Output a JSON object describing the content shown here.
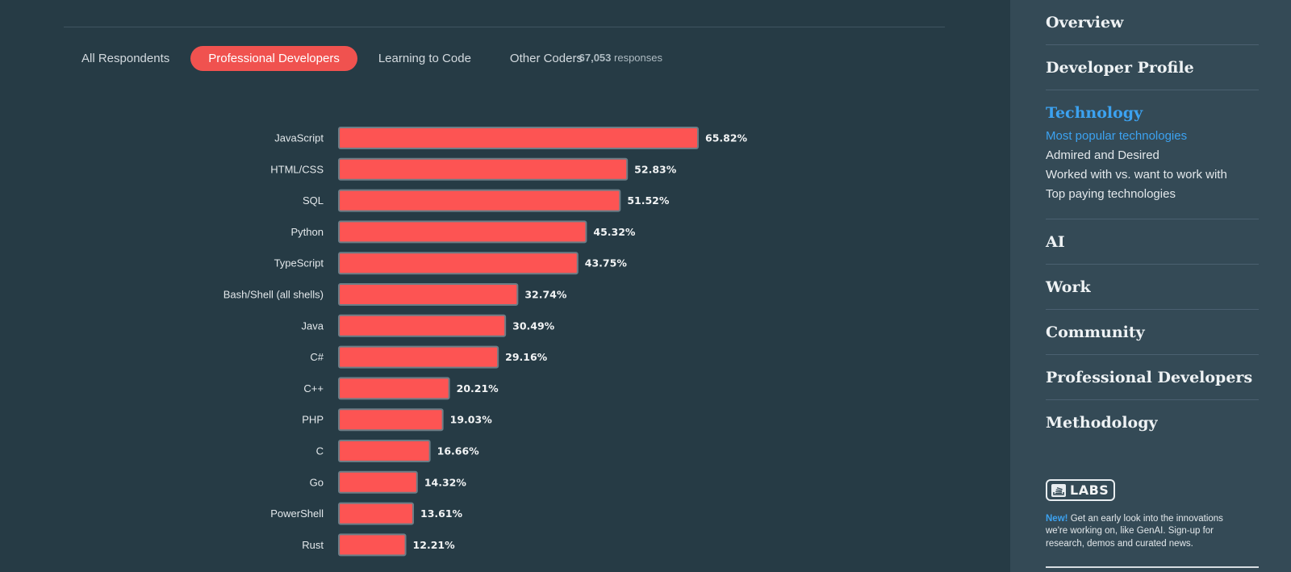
{
  "tabs": [
    {
      "label": "All Respondents",
      "active": false
    },
    {
      "label": "Professional Developers",
      "active": true
    },
    {
      "label": "Learning to Code",
      "active": false
    },
    {
      "label": "Other Coders",
      "active": false
    }
  ],
  "responses": {
    "count": "67,053",
    "label": "responses"
  },
  "colors": {
    "bar": "#fd5453",
    "accent": "#3ca2f0",
    "active_tab": "#f0524f"
  },
  "chart_data": {
    "type": "bar",
    "orientation": "horizontal",
    "categories": [
      "JavaScript",
      "HTML/CSS",
      "SQL",
      "Python",
      "TypeScript",
      "Bash/Shell (all shells)",
      "Java",
      "C#",
      "C++",
      "PHP",
      "C",
      "Go",
      "PowerShell",
      "Rust"
    ],
    "values": [
      65.82,
      52.83,
      51.52,
      45.32,
      43.75,
      32.74,
      30.49,
      29.16,
      20.21,
      19.03,
      16.66,
      14.32,
      13.61,
      12.21
    ],
    "value_labels": [
      "65.82%",
      "52.83%",
      "51.52%",
      "45.32%",
      "43.75%",
      "32.74%",
      "30.49%",
      "29.16%",
      "20.21%",
      "19.03%",
      "16.66%",
      "14.32%",
      "13.61%",
      "12.21%"
    ],
    "unit": "%",
    "grid": false,
    "legend": "none"
  },
  "sidebar": {
    "sections": [
      {
        "label": "Overview",
        "active": false
      },
      {
        "label": "Developer Profile",
        "active": false
      },
      {
        "label": "Technology",
        "active": true,
        "items": [
          {
            "label": "Most popular technologies",
            "active": true
          },
          {
            "label": "Admired and Desired",
            "active": false
          },
          {
            "label": "Worked with vs. want to work with",
            "active": false
          },
          {
            "label": "Top paying technologies",
            "active": false
          }
        ]
      },
      {
        "label": "AI",
        "active": false
      },
      {
        "label": "Work",
        "active": false
      },
      {
        "label": "Community",
        "active": false
      },
      {
        "label": "Professional Developers",
        "active": false
      },
      {
        "label": "Methodology",
        "active": false
      }
    ],
    "labs": {
      "badge": "LABS",
      "new": "New!",
      "description": "Get an early look into the innovations we're working on, like GenAI. Sign-up for research, demos and curated news."
    }
  }
}
